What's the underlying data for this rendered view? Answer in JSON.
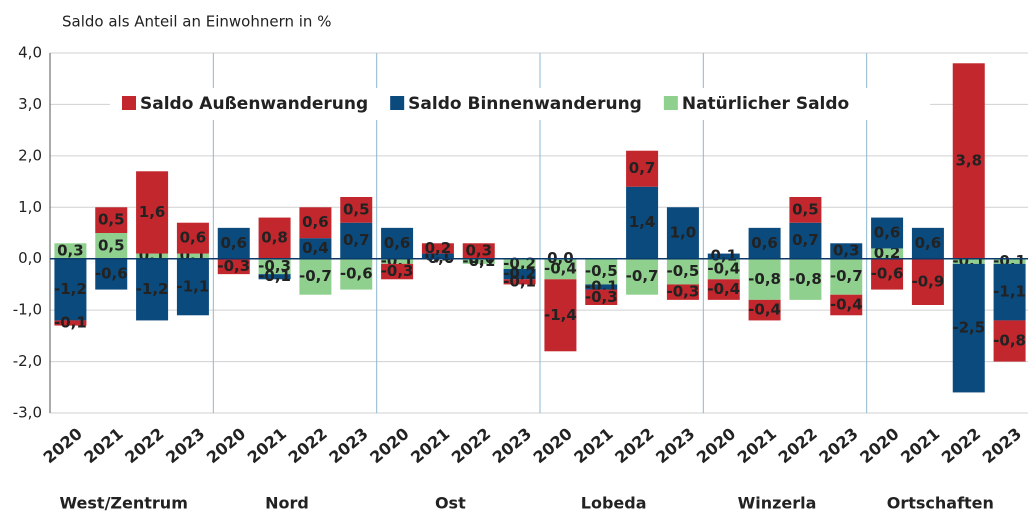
{
  "chart_data": {
    "type": "stacked_bar",
    "subtitle": "Saldo als Anteil an Einwohnern in %",
    "categories": [
      "2020",
      "2021",
      "2022",
      "2023",
      "2020",
      "2021",
      "2022",
      "2023",
      "2020",
      "2021",
      "2022",
      "2023",
      "2020",
      "2021",
      "2022",
      "2023",
      "2020",
      "2021",
      "2022",
      "2023",
      "2020",
      "2021",
      "2022",
      "2023"
    ],
    "groups": [
      "West/Zentrum",
      "Nord",
      "Ost",
      "Lobeda",
      "Winzerla",
      "Ortschaften"
    ],
    "series": [
      {
        "name": "Saldo Außenwanderung",
        "color": "#c1272d",
        "values": [
          -0.1,
          0.5,
          1.6,
          0.6,
          -0.3,
          0.8,
          0.6,
          0.5,
          -0.3,
          0.2,
          0.3,
          -0.1,
          -1.4,
          -0.3,
          0.7,
          -0.3,
          -0.4,
          -0.4,
          0.5,
          -0.4,
          -0.6,
          -0.9,
          3.8,
          -0.8
        ],
        "value_labels": [
          "-0,1",
          "0,5",
          "1,6",
          "0,6",
          "-0,3",
          "0,8",
          "0,6",
          "0,5",
          "-0,3",
          "0,2",
          "0,3",
          "-0,1",
          "-1,4",
          "-0,3",
          "0,7",
          "-0,3",
          "-0,4",
          "-0,4",
          "0,5",
          "-0,4",
          "-0,6",
          "-0,9",
          "3,8",
          "-0,8"
        ]
      },
      {
        "name": "Saldo Binnenwanderung",
        "color": "#0b4a7d",
        "values": [
          -1.2,
          -0.6,
          -1.2,
          -1.1,
          0.6,
          -0.1,
          0.4,
          0.7,
          0.6,
          0.1,
          0.0,
          -0.2,
          0.0,
          -0.1,
          1.4,
          1.0,
          0.1,
          0.6,
          0.7,
          0.3,
          0.6,
          0.6,
          -2.5,
          -1.1
        ],
        "value_labels": [
          "-1,2",
          "-0,6",
          "-1,2",
          "-1,1",
          "0,6",
          "-0,1",
          "0,4",
          "0,7",
          "0,6",
          "0,1",
          "-0,0",
          "-0,2",
          "0,0",
          "-0,1",
          "1,4",
          "1,0",
          "0,1",
          "0,6",
          "0,7",
          "0,3",
          "0,6",
          "0,6",
          "-2,5",
          "-1,1"
        ]
      },
      {
        "name": "Natürlicher Saldo",
        "color": "#8fd08f",
        "values": [
          0.3,
          0.5,
          0.1,
          0.1,
          0.0,
          -0.3,
          -0.7,
          -0.6,
          -0.1,
          0.0,
          -0.1,
          -0.2,
          -0.4,
          -0.5,
          -0.7,
          -0.5,
          -0.4,
          -0.8,
          -0.8,
          -0.7,
          0.2,
          0.0,
          -0.1,
          -0.1
        ],
        "value_labels": [
          "0,3",
          "0,5",
          "0,1",
          "0,1",
          "0,0",
          "-0,3",
          "-0,7",
          "-0,6",
          "-0,1",
          "-0,0",
          "-0,1",
          "-0,2",
          "-0,4",
          "-0,5",
          "-0,7",
          "-0,5",
          "-0,4",
          "-0,8",
          "-0,8",
          "-0,7",
          "0,2",
          "0,0",
          "-0,1",
          "-0,1"
        ]
      }
    ],
    "ylim": [
      -3,
      4
    ],
    "yticks": [
      {
        "value": -3,
        "label": "-3,0"
      },
      {
        "value": -2,
        "label": "-2,0"
      },
      {
        "value": -1,
        "label": "-1,0"
      },
      {
        "value": 0,
        "label": "0,0"
      },
      {
        "value": 1,
        "label": "1,0"
      },
      {
        "value": 2,
        "label": "2,0"
      },
      {
        "value": 3,
        "label": "3,0"
      },
      {
        "value": 4,
        "label": "4,0"
      }
    ],
    "grid": true
  }
}
